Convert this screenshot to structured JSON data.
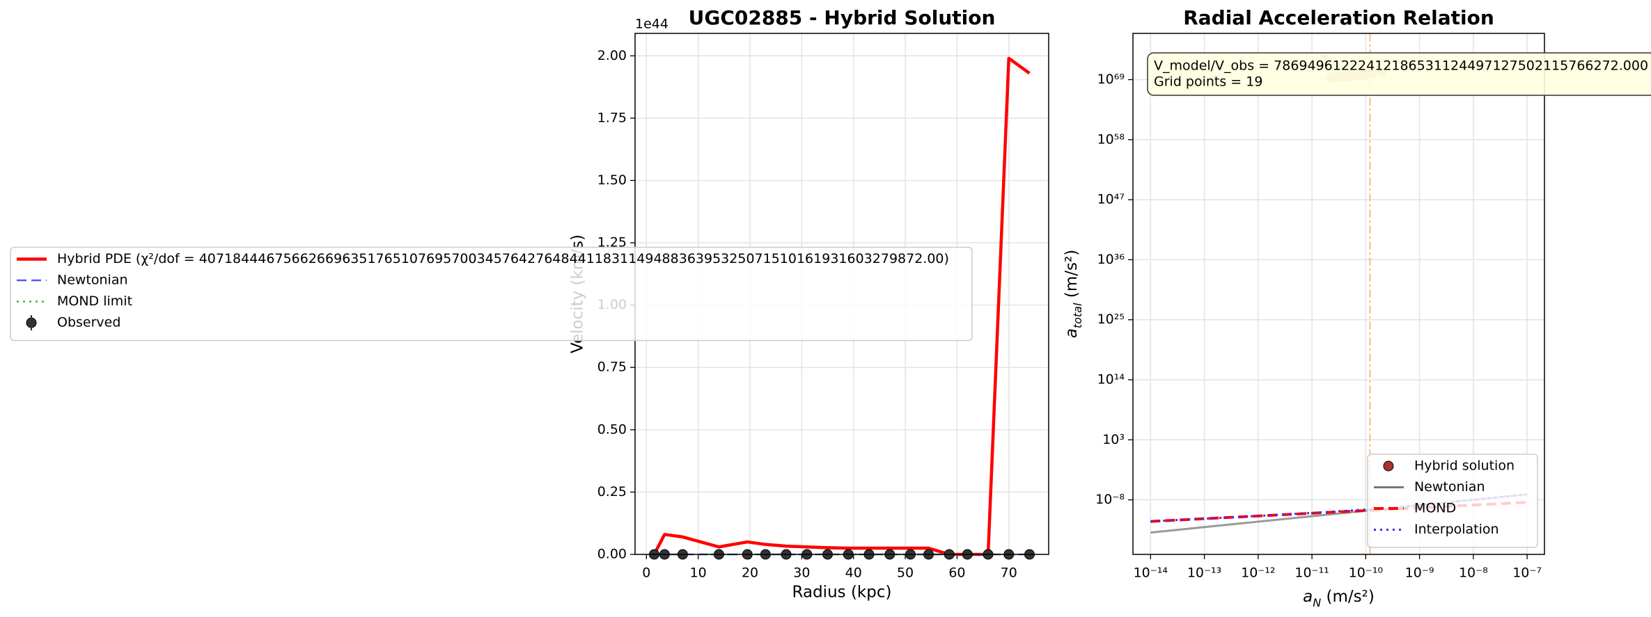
{
  "chart_data": [
    {
      "type": "line",
      "title": "UGC02885 - Hybrid Solution",
      "xlabel": "Radius (kpc)",
      "ylabel": "Velocity (km/s)",
      "offset_text": "1e44",
      "x": [
        1.5,
        3.5,
        7,
        14,
        19.5,
        23,
        27,
        31,
        35,
        39,
        43,
        47,
        51,
        54.5,
        58.5,
        62,
        66,
        70,
        74
      ],
      "series": [
        {
          "name": "Hybrid PDE (χ²/dof = 40718444675662669635176510769570034576427648441183114948836395325071510161931603279872.00)",
          "color": "#ff0000",
          "style": "solid",
          "width": 4.5,
          "values": [
            0,
            0.08,
            0.07,
            0.03,
            0.05,
            0.04,
            0.033,
            0.03,
            0.027,
            0.025,
            0.025,
            0.025,
            0.025,
            0.025,
            0,
            0,
            0,
            1.99,
            1.93
          ]
        },
        {
          "name": "Newtonian",
          "color": "#5555ff",
          "style": "dashed",
          "width": 2.5,
          "values": [
            0,
            0,
            0,
            0,
            0,
            0,
            0,
            0,
            0,
            0,
            0,
            0,
            0,
            0,
            0,
            0,
            0,
            0,
            0
          ]
        },
        {
          "name": "MOND limit",
          "color": "#4caf50",
          "style": "dotted",
          "width": 2.5,
          "values": [
            0,
            0,
            0,
            0,
            0,
            0,
            0,
            0,
            0,
            0,
            0,
            0,
            0,
            0,
            0,
            0,
            0,
            0,
            0
          ]
        },
        {
          "name": "Observed",
          "color": "#333333",
          "style": "marker",
          "values": [
            0,
            0,
            0,
            0,
            0,
            0,
            0,
            0,
            0,
            0,
            0,
            0,
            0,
            0,
            0,
            0,
            0,
            0,
            0
          ]
        }
      ],
      "xlim": [
        -2.2,
        77.7
      ],
      "ylim": [
        0,
        2.09
      ],
      "xticks": [
        0,
        10,
        20,
        30,
        40,
        50,
        60,
        70
      ],
      "yticks": [
        {
          "value": 0,
          "label": "0.00"
        },
        {
          "value": 0.25,
          "label": "0.25"
        },
        {
          "value": 0.5,
          "label": "0.50"
        },
        {
          "value": 0.75,
          "label": "0.75"
        },
        {
          "value": 1,
          "label": "1.00"
        },
        {
          "value": 1.25,
          "label": "1.25"
        },
        {
          "value": 1.5,
          "label": "1.50"
        },
        {
          "value": 1.75,
          "label": "1.75"
        },
        {
          "value": 2,
          "label": "2.00"
        }
      ],
      "grid": true,
      "legend": "center left"
    },
    {
      "type": "scatter",
      "title": "Radial Acceleration Relation",
      "xlabel": {
        "symbol": "a",
        "subscript": "N",
        "unit": " (m/s²)"
      },
      "ylabel": {
        "symbol": "a",
        "subscript": "total",
        "unit": " (m/s²)"
      },
      "annotation": [
        "V_model/V_obs = 78694961222412186531124497127502115766272.000",
        "Grid points = 19"
      ],
      "reference_x": {
        "value": 1.2e-10,
        "color": "#ffb060"
      },
      "series": [
        {
          "name": "Hybrid solution",
          "color": "#d4b4a0",
          "style": "marker",
          "x": [
            1.7e-11,
            2.2e-11,
            2.5e-11,
            2.8e-11,
            3.1e-11,
            3.4e-11,
            3.8e-11,
            4.2e-11,
            4.6e-11,
            5e-11,
            5.5e-11,
            6e-11,
            6.6e-11,
            7.3e-11,
            8e-11,
            9e-11,
            1e-10,
            1.3e-10,
            2e-10
          ],
          "values": [
            1e+73,
            2.5e+69,
            2.7e+69,
            3e+69,
            3.2e+69,
            3.5e+69,
            3.8e+69,
            4e+69,
            4.3e+69,
            4.6e+69,
            5e+69,
            5.5e+69,
            6e+69,
            6.5e+69,
            7e+69,
            8e+69,
            9e+69,
            1.2e+70,
            2e+70
          ]
        },
        {
          "name": "Newtonian",
          "color": "#777777",
          "style": "solid",
          "width": 3,
          "x": [
            1e-14,
            1e-13,
            1e-12,
            1e-11,
            1e-10,
            1e-09,
            1e-08,
            1e-07
          ],
          "values": [
            1e-14,
            1e-13,
            1e-12,
            1e-11,
            1e-10,
            1e-09,
            1e-08,
            1e-07
          ]
        },
        {
          "name": "MOND",
          "color": "#ff0000",
          "style": "dashed",
          "width": 4,
          "x": [
            1e-14,
            1e-13,
            1e-12,
            1e-11,
            1e-10,
            1e-09,
            1e-08,
            1e-07
          ],
          "values": [
            1.1e-12,
            3.5e-12,
            1.1e-11,
            3.5e-11,
            1.1e-10,
            3.5e-10,
            1.1e-09,
            3.5e-09
          ]
        },
        {
          "name": "Interpolation",
          "color": "#3333ff",
          "style": "dotted",
          "width": 3,
          "x": [
            1e-14,
            1e-13,
            1e-12,
            1e-11,
            1e-10,
            1e-09,
            1e-08,
            1e-07
          ],
          "values": [
            1.1e-12,
            3.5e-12,
            1.1e-11,
            4e-11,
            1.66e-10,
            1.12e-09,
            1.01e-08,
            1e-07
          ]
        }
      ],
      "xscale": "log",
      "yscale": "log",
      "xlim": [
        4.7e-15,
        2.1e-07
      ],
      "ylim": [
        1e-18,
        3e+77
      ],
      "xticks": [
        {
          "value": 1e-14,
          "label": "10⁻¹⁴"
        },
        {
          "value": 1e-13,
          "label": "10⁻¹³"
        },
        {
          "value": 1e-12,
          "label": "10⁻¹²"
        },
        {
          "value": 1e-11,
          "label": "10⁻¹¹"
        },
        {
          "value": 1e-10,
          "label": "10⁻¹⁰"
        },
        {
          "value": 1e-09,
          "label": "10⁻⁹"
        },
        {
          "value": 1e-08,
          "label": "10⁻⁸"
        },
        {
          "value": 1e-07,
          "label": "10⁻⁷"
        }
      ],
      "yticks": [
        {
          "value": 1e-08,
          "label": "10⁻⁸"
        },
        {
          "value": 1000.0,
          "label": "10³"
        },
        {
          "value": 100000000000000.0,
          "label": "10¹⁴"
        },
        {
          "value": 1e+25,
          "label": "10²⁵"
        },
        {
          "value": 1e+36,
          "label": "10³⁶"
        },
        {
          "value": 1e+47,
          "label": "10⁴⁷"
        },
        {
          "value": 1e+58,
          "label": "10⁵⁸"
        },
        {
          "value": 1e+69,
          "label": "10⁶⁹"
        }
      ],
      "grid": true,
      "legend": "lower right"
    }
  ]
}
